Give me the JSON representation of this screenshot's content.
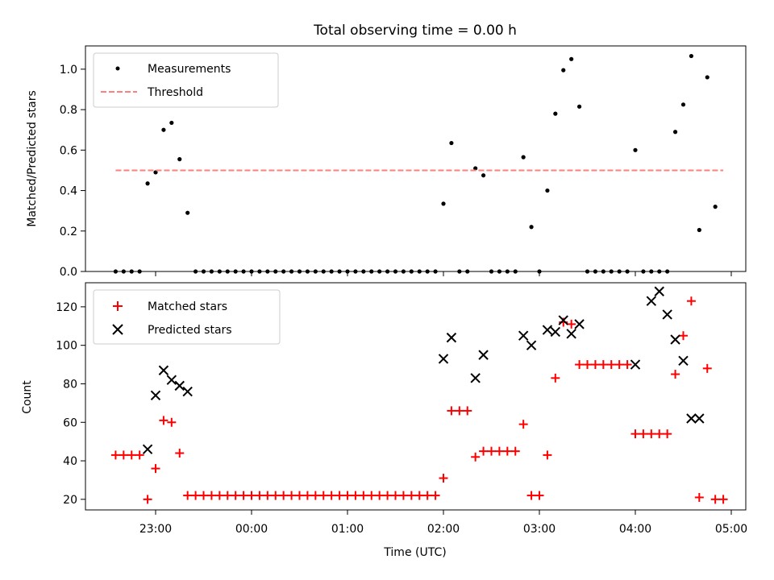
{
  "chart_data": [
    {
      "type": "scatter",
      "title": "Total observing time = 0.00 h",
      "ylabel": "Matched/Predicted stars",
      "ylim": [
        0,
        1.115
      ],
      "yticks": [
        "0.0",
        "0.2",
        "0.4",
        "0.6",
        "0.8",
        "1.0"
      ],
      "legend_position": "top-left",
      "grid": false,
      "series": [
        {
          "name": "Measurements",
          "color": "#000000",
          "marker": "dot",
          "x": [
            "22:35",
            "22:40",
            "22:45",
            "22:50",
            "22:55",
            "23:00",
            "23:05",
            "23:10",
            "23:15",
            "23:20",
            "23:25",
            "23:30",
            "23:35",
            "23:40",
            "23:45",
            "23:50",
            "23:55",
            "24:00",
            "24:05",
            "24:10",
            "24:15",
            "24:20",
            "24:25",
            "24:30",
            "24:35",
            "24:40",
            "24:45",
            "24:50",
            "24:55",
            "25:00",
            "25:05",
            "25:10",
            "25:15",
            "25:20",
            "25:25",
            "25:30",
            "25:35",
            "25:40",
            "25:45",
            "25:50",
            "25:55",
            "26:00",
            "26:05",
            "26:10",
            "26:15",
            "26:20",
            "26:25",
            "26:30",
            "26:35",
            "26:40",
            "26:45",
            "26:50",
            "26:55",
            "27:00",
            "27:05",
            "27:10",
            "27:15",
            "27:20",
            "27:25",
            "27:30",
            "27:35",
            "27:40",
            "27:45",
            "27:50",
            "27:55",
            "28:00",
            "28:05",
            "28:10",
            "28:15",
            "28:20",
            "28:25",
            "28:30",
            "28:35",
            "28:40",
            "28:45",
            "28:50"
          ],
          "y": [
            0,
            0,
            0,
            0,
            0.435,
            0.49,
            0.7,
            0.735,
            0.555,
            0.29,
            0,
            0,
            0,
            0,
            0,
            0,
            0,
            0,
            0,
            0,
            0,
            0,
            0,
            0,
            0,
            0,
            0,
            0,
            0,
            0,
            0,
            0,
            0,
            0,
            0,
            0,
            0,
            0,
            0,
            0,
            0,
            0.335,
            0.635,
            0,
            0,
            0.51,
            0.475,
            0,
            0,
            0,
            0,
            0.565,
            0.22,
            0,
            0.4,
            0.78,
            0.995,
            1.05,
            0.815,
            0,
            0,
            0,
            0,
            0,
            0,
            0.6,
            0,
            0,
            0,
            0,
            0.69,
            0.825,
            1.065,
            0.205,
            0.96,
            0.32
          ]
        },
        {
          "name": "Threshold",
          "color": "#ff7f7f",
          "style": "dashed",
          "x": [
            "22:35",
            "28:55"
          ],
          "y": [
            0.5,
            0.5
          ]
        }
      ]
    },
    {
      "type": "scatter",
      "xlabel": "Time (UTC)",
      "ylabel": "Count",
      "ylim": [
        14.5,
        132.5
      ],
      "yticks": [
        "20",
        "40",
        "60",
        "80",
        "100",
        "120"
      ],
      "xticks": [
        "23:00",
        "00:00",
        "01:00",
        "02:00",
        "03:00",
        "04:00",
        "05:00"
      ],
      "legend_position": "top-left",
      "grid": false,
      "series": [
        {
          "name": "Matched stars",
          "color": "#ff0000",
          "marker": "plus",
          "x": [
            "22:35",
            "22:40",
            "22:45",
            "22:50",
            "22:55",
            "23:00",
            "23:05",
            "23:10",
            "23:15",
            "23:20",
            "23:25",
            "23:30",
            "23:35",
            "23:40",
            "23:45",
            "23:50",
            "23:55",
            "24:00",
            "24:05",
            "24:10",
            "24:15",
            "24:20",
            "24:25",
            "24:30",
            "24:35",
            "24:40",
            "24:45",
            "24:50",
            "24:55",
            "25:00",
            "25:05",
            "25:10",
            "25:15",
            "25:20",
            "25:25",
            "25:30",
            "25:35",
            "25:40",
            "25:45",
            "25:50",
            "25:55",
            "26:00",
            "26:05",
            "26:10",
            "26:15",
            "26:20",
            "26:25",
            "26:30",
            "26:35",
            "26:40",
            "26:45",
            "26:50",
            "26:55",
            "27:00",
            "27:05",
            "27:10",
            "27:15",
            "27:20",
            "27:25",
            "27:30",
            "27:35",
            "27:40",
            "27:45",
            "27:50",
            "27:55",
            "28:00",
            "28:05",
            "28:10",
            "28:15",
            "28:20",
            "28:25",
            "28:30",
            "28:35",
            "28:40",
            "28:45",
            "28:50"
          ],
          "y": [
            43,
            43,
            43,
            43,
            20,
            36,
            61,
            60,
            44,
            22,
            22,
            22,
            22,
            22,
            22,
            22,
            22,
            22,
            22,
            22,
            22,
            22,
            22,
            22,
            22,
            22,
            22,
            22,
            22,
            22,
            22,
            22,
            22,
            22,
            22,
            22,
            22,
            22,
            22,
            22,
            22,
            31,
            66,
            66,
            66,
            42,
            45,
            45,
            45,
            45,
            45,
            59,
            22,
            22,
            43,
            83,
            112,
            111,
            90,
            90,
            90,
            90,
            90,
            90,
            90,
            54,
            54,
            54,
            54,
            54,
            85,
            105,
            123,
            21,
            88,
            20
          ]
        },
        {
          "name": "Predicted stars",
          "color": "#000000",
          "marker": "x",
          "x": [
            "22:55",
            "23:00",
            "23:05",
            "23:10",
            "23:15",
            "23:20",
            "26:00",
            "26:05",
            "26:20",
            "26:25",
            "26:50",
            "26:55",
            "27:05",
            "27:10",
            "27:15",
            "27:20",
            "27:25",
            "28:00",
            "28:10",
            "28:15",
            "28:20",
            "28:25",
            "28:30",
            "28:35",
            "28:40"
          ],
          "y": [
            46,
            74,
            87,
            82,
            79,
            76,
            93,
            104,
            83,
            95,
            105,
            100,
            108,
            107,
            113,
            106,
            111,
            90,
            123,
            128,
            116,
            103,
            92,
            62,
            62
          ]
        },
        {
          "name": "",
          "color": "#ff0000",
          "marker": "plus",
          "x": [
            "28:55"
          ],
          "y": [
            20
          ]
        }
      ]
    }
  ]
}
